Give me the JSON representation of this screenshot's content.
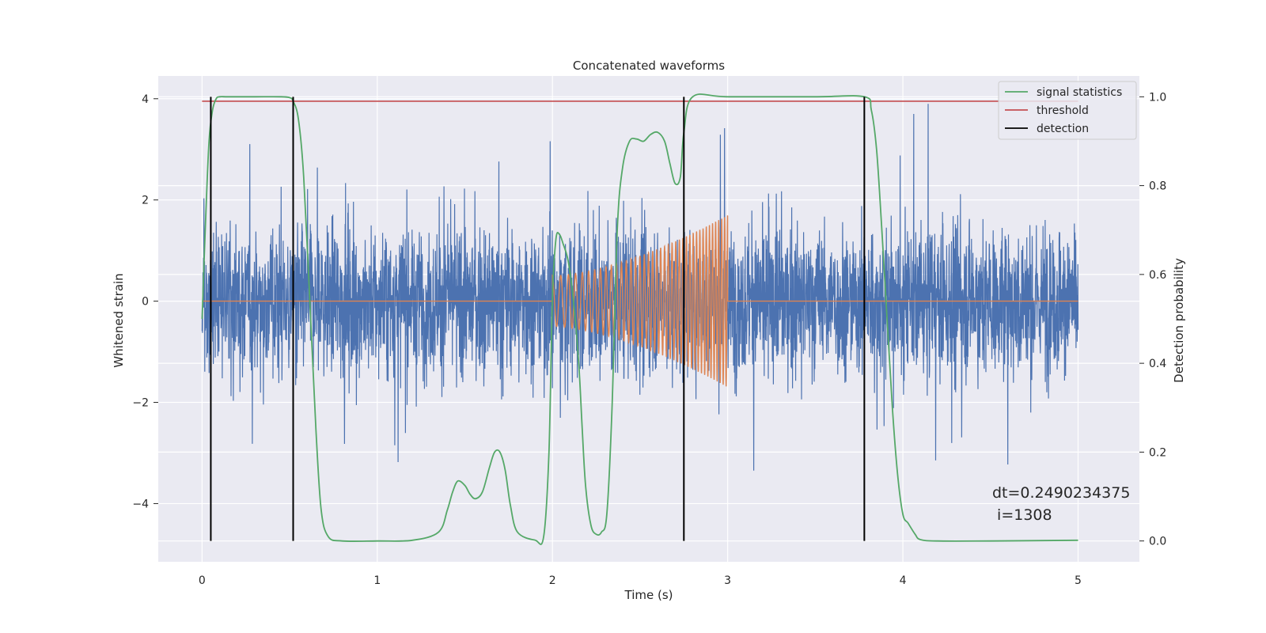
{
  "chart_data": {
    "type": "line",
    "title": "Concatenated waveforms",
    "xlabel": "Time (s)",
    "ylabel_left": "Whitened strain",
    "ylabel_right": "Detection probability",
    "xlim": [
      -0.25,
      5.35
    ],
    "ylim_left": [
      -5.15,
      4.45
    ],
    "ylim_right": [
      -0.0469,
      1.0469
    ],
    "x_ticks": [
      0,
      1,
      2,
      3,
      4,
      5
    ],
    "y_left_ticks": [
      -4,
      -2,
      0,
      2,
      4
    ],
    "y_right_ticks": [
      0.0,
      0.2,
      0.4,
      0.6,
      0.8,
      1.0
    ],
    "grid": true,
    "legend_position": "upper right",
    "colors": {
      "noise": "#4c72b0",
      "signal": "#dd8452",
      "statistics": "#55a868",
      "threshold": "#c44e52",
      "detection": "#000000",
      "background": "#eaeaf2",
      "grid": "#ffffff"
    },
    "series": [
      {
        "id": "strain",
        "axis": "left",
        "x_range": [
          0,
          5
        ],
        "typical_amplitude": 1.0,
        "peak_amplitude": 3.9
      },
      {
        "id": "injected_chirp",
        "axis": "left",
        "x_range": [
          2.0,
          3.0
        ],
        "amplitude_start": 0.5,
        "amplitude_end": 1.7,
        "freq_start": 20,
        "freq_end": 60
      },
      {
        "name": "signal statistics",
        "axis": "right",
        "x": [
          0,
          0.02,
          0.04,
          0.06,
          0.08,
          0.1,
          0.15,
          0.3,
          0.45,
          0.5,
          0.52,
          0.55,
          0.58,
          0.62,
          0.65,
          0.68,
          0.72,
          0.8,
          1.0,
          1.2,
          1.35,
          1.4,
          1.43,
          1.46,
          1.5,
          1.53,
          1.56,
          1.6,
          1.64,
          1.67,
          1.7,
          1.73,
          1.76,
          1.8,
          1.9,
          1.95,
          1.98,
          2.0,
          2.02,
          2.04,
          2.06,
          2.09,
          2.12,
          2.15,
          2.17,
          2.19,
          2.22,
          2.25,
          2.28,
          2.31,
          2.34,
          2.37,
          2.4,
          2.44,
          2.48,
          2.52,
          2.56,
          2.6,
          2.64,
          2.67,
          2.7,
          2.73,
          2.75,
          2.8,
          3.0,
          3.5,
          3.78,
          3.82,
          3.85,
          3.88,
          3.91,
          3.94,
          3.97,
          4.0,
          4.03,
          4.07,
          4.1,
          4.2,
          4.5,
          5.0
        ],
        "values": [
          0.5,
          0.72,
          0.9,
          0.97,
          0.995,
          1.0,
          1.0,
          1.0,
          1.0,
          0.998,
          0.99,
          0.95,
          0.82,
          0.5,
          0.25,
          0.07,
          0.01,
          0.0,
          0.0,
          0.0015,
          0.02,
          0.07,
          0.11,
          0.135,
          0.125,
          0.105,
          0.095,
          0.11,
          0.165,
          0.2,
          0.2,
          0.16,
          0.08,
          0.02,
          0.002,
          0.01,
          0.2,
          0.55,
          0.68,
          0.69,
          0.67,
          0.63,
          0.54,
          0.4,
          0.25,
          0.12,
          0.035,
          0.015,
          0.02,
          0.06,
          0.3,
          0.7,
          0.84,
          0.9,
          0.905,
          0.9,
          0.915,
          0.92,
          0.9,
          0.85,
          0.805,
          0.82,
          0.92,
          1.0,
          1.0,
          1.0,
          1.0,
          0.97,
          0.88,
          0.7,
          0.5,
          0.3,
          0.15,
          0.06,
          0.04,
          0.015,
          0.003,
          0.0,
          0.0,
          0.0015
        ]
      },
      {
        "name": "threshold",
        "axis": "right",
        "value": 0.99
      },
      {
        "name": "detection",
        "axis": "right",
        "x": [
          0.05,
          0.52,
          2.75,
          3.78
        ],
        "y_range": [
          0,
          1
        ]
      }
    ],
    "legend": [
      "signal statistics",
      "threshold",
      "detection"
    ],
    "annotation": "dt=0.2490234375\n i=1308"
  }
}
